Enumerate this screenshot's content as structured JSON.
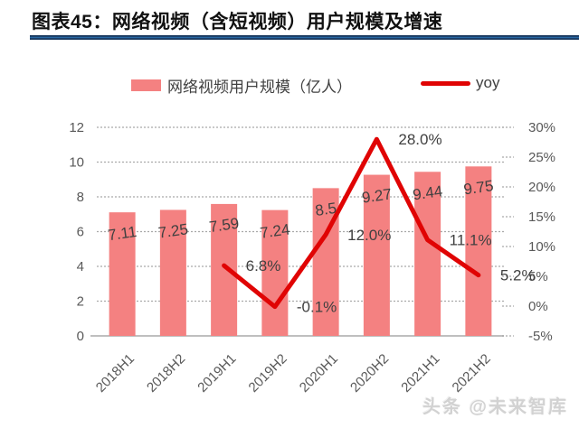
{
  "header": {
    "title": "图表45：网络视频（含短视频）用户规模及增速"
  },
  "legend": [
    {
      "label": "网络视频用户规模（亿人）",
      "type": "bar",
      "color": "#f48181"
    },
    {
      "label": "yoy",
      "type": "line",
      "color": "#e00404"
    }
  ],
  "watermark": "头条 @未来智库",
  "colors": {
    "bar_fill": "#f48181",
    "line_stroke": "#e00404",
    "title_rule": "#1f4e79",
    "axis_text": "#595959",
    "data_label_text": "#404040",
    "gridline": "#a9a9a9",
    "axis_line": "#bfbfbf"
  },
  "chart_data": {
    "type": "bar",
    "title": "网络视频（含短视频）用户规模及增速",
    "categories": [
      "2018H1",
      "2018H2",
      "2019H1",
      "2019H2",
      "2020H1",
      "2020H2",
      "2021H1",
      "2021H2"
    ],
    "series": [
      {
        "name": "网络视频用户规模（亿人）",
        "type": "bar",
        "axis": "left",
        "values": [
          7.11,
          7.25,
          7.59,
          7.24,
          8.5,
          9.27,
          9.44,
          9.75
        ],
        "labels": [
          "7.11",
          "7.25",
          "7.59",
          "7.24",
          "8.5",
          "9.27",
          "9.44",
          "9.75"
        ]
      },
      {
        "name": "yoy",
        "type": "line",
        "axis": "right",
        "values": [
          null,
          null,
          6.8,
          -0.1,
          12.0,
          28.0,
          11.1,
          5.2
        ],
        "labels": [
          null,
          null,
          "6.8%",
          "-0.1%",
          "12.0%",
          "28.0%",
          "11.1%",
          "5.2%"
        ]
      }
    ],
    "left_axis": {
      "ylim": [
        0,
        12
      ],
      "ticks": [
        0,
        2,
        4,
        6,
        8,
        10,
        12
      ],
      "tick_labels": [
        "0",
        "2",
        "4",
        "6",
        "8",
        "10",
        "12"
      ]
    },
    "right_axis": {
      "ylim": [
        -5,
        30
      ],
      "ticks": [
        -5,
        0,
        5,
        10,
        15,
        20,
        25,
        30
      ],
      "tick_labels": [
        "-5%",
        "0%",
        "5%",
        "10%",
        "15%",
        "20%",
        "25%",
        "30%"
      ]
    },
    "grid": true,
    "legend_position": "top"
  }
}
